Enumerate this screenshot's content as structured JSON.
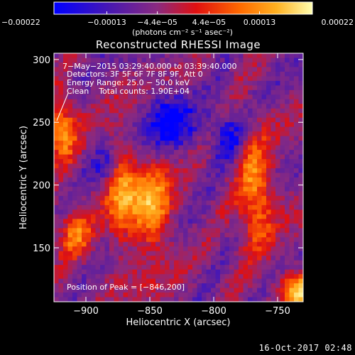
{
  "footer": {
    "timestamp": "16-Oct-2017 02:48"
  },
  "colors": {
    "background": "#000000",
    "foreground": "#ffffff",
    "colormap": [
      "#0000ff",
      "#5a1ea0",
      "#8a2a80",
      "#e01010",
      "#ff6a00",
      "#ffb020",
      "#ffffb0"
    ]
  },
  "chart_data": {
    "type": "heatmap",
    "title": "Reconstructed RHESSI Image",
    "xlabel": "Heliocentric X (arcsec)",
    "ylabel": "Heliocentric Y (arcsec)",
    "xlim": [
      -925,
      -730
    ],
    "ylim": [
      107,
      305
    ],
    "x_ticks": [
      -900,
      -850,
      -800,
      -750
    ],
    "x_tick_labels": [
      "−900",
      "−850",
      "−800",
      "−750"
    ],
    "y_ticks": [
      150,
      200,
      250,
      300
    ],
    "y_tick_labels": [
      "150",
      "200",
      "250",
      "300"
    ],
    "colorbar": {
      "range": [
        -0.00022,
        0.00022
      ],
      "tick_values": [
        -0.00022,
        -0.00013,
        -4.4e-05,
        4.4e-05,
        0.00013,
        0.00022
      ],
      "tick_labels": [
        "−0.00022",
        "−0.00013",
        "−4.4e−05",
        "4.4e−05",
        "0.00013",
        "0.00022"
      ],
      "unit_label": "(photons cm⁻² s⁻¹ asec⁻²)"
    },
    "annotations": [
      "7−May−2015 03:29:40.000 to 03:39:40.000",
      "Detectors: 3F 5F 6F 7F 8F 9F, Att 0",
      "Energy Range: 25.0 − 50.0 keV",
      "Clean    Total counts: 1.90E+04"
    ],
    "peak_label": "Position of Peak = [−846,200]",
    "peak_position": [
      -846,
      200
    ],
    "total_counts": 19000,
    "energy_range_kev": [
      25.0,
      50.0
    ]
  }
}
